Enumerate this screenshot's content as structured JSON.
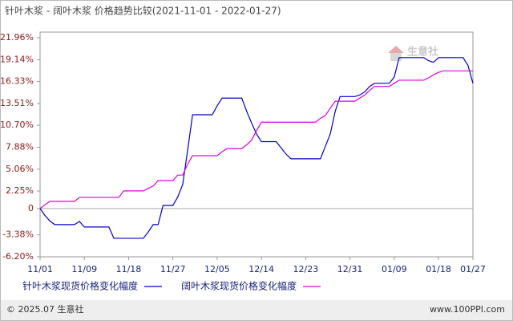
{
  "chart_data": {
    "type": "line",
    "title": "针叶木浆 - 阔叶木浆 价格趋势比较(2021-11-01 - 2022-01-27)",
    "watermark": "生意社",
    "footer_left": "© 2025.07 生意社",
    "footer_right": "www.100PPI.com",
    "categories": [
      "11/01",
      null,
      null,
      null,
      null,
      null,
      null,
      null,
      null,
      "11/09",
      null,
      null,
      null,
      null,
      null,
      null,
      null,
      null,
      "11/18",
      null,
      null,
      null,
      null,
      null,
      null,
      null,
      null,
      "11/27",
      null,
      null,
      null,
      null,
      null,
      null,
      null,
      null,
      "12/05",
      null,
      null,
      null,
      null,
      null,
      null,
      null,
      null,
      "12/14",
      null,
      null,
      null,
      null,
      null,
      null,
      null,
      null,
      "12/23",
      null,
      null,
      null,
      null,
      null,
      null,
      null,
      null,
      "12/31",
      null,
      null,
      null,
      null,
      null,
      null,
      null,
      null,
      "01/09",
      null,
      null,
      null,
      null,
      null,
      null,
      null,
      null,
      "01/18",
      null,
      null,
      null,
      null,
      null,
      null,
      "01/27"
    ],
    "series": [
      {
        "name": "针叶木浆现货价格变化幅度",
        "color": "#0000cc",
        "values": [
          0,
          -0.9,
          -1.6,
          -2.06,
          -2.06,
          -2.06,
          -2.06,
          -2.06,
          -1.65,
          -2.37,
          -2.37,
          -2.37,
          -2.37,
          -2.37,
          -2.37,
          -3.82,
          -3.82,
          -3.82,
          -3.82,
          -3.82,
          -3.82,
          -3.82,
          -3.0,
          -2.06,
          -2.06,
          0.4,
          0.4,
          0.4,
          1.5,
          3.1,
          7.5,
          12.06,
          12.06,
          12.06,
          12.06,
          12.06,
          13.2,
          14.2,
          14.2,
          14.2,
          14.2,
          14.2,
          12.5,
          11.0,
          9.6,
          8.6,
          8.6,
          8.6,
          8.6,
          7.8,
          7.0,
          6.4,
          6.4,
          6.4,
          6.4,
          6.4,
          6.4,
          6.4,
          8.0,
          9.6,
          12.5,
          14.4,
          14.4,
          14.4,
          14.4,
          14.6,
          15.0,
          15.7,
          16.1,
          16.1,
          16.1,
          16.1,
          16.9,
          19.4,
          19.4,
          19.4,
          19.4,
          19.4,
          19.4,
          19.0,
          18.8,
          19.4,
          19.4,
          19.4,
          19.4,
          19.4,
          19.4,
          18.4,
          16.1
        ]
      },
      {
        "name": "阔叶木浆现货价格变化幅度",
        "color": "#dd00dd",
        "values": [
          0,
          0.5,
          0.93,
          0.93,
          0.93,
          0.93,
          0.93,
          0.93,
          1.44,
          1.44,
          1.44,
          1.44,
          1.44,
          1.44,
          1.44,
          1.44,
          1.44,
          2.27,
          2.27,
          2.27,
          2.27,
          2.27,
          2.6,
          2.9,
          3.6,
          3.6,
          3.6,
          3.6,
          4.3,
          4.3,
          5.7,
          6.8,
          6.8,
          6.8,
          6.8,
          6.8,
          6.8,
          7.3,
          7.7,
          7.7,
          7.7,
          7.7,
          8.2,
          8.8,
          10.0,
          11.1,
          11.1,
          11.1,
          11.1,
          11.1,
          11.1,
          11.1,
          11.1,
          11.1,
          11.1,
          11.1,
          11.1,
          11.6,
          11.96,
          12.9,
          13.8,
          13.8,
          13.8,
          13.8,
          13.8,
          14.2,
          14.6,
          15.2,
          15.7,
          15.7,
          15.7,
          15.7,
          16.1,
          16.5,
          16.5,
          16.5,
          16.5,
          16.5,
          16.5,
          16.8,
          17.2,
          17.5,
          17.7,
          17.7,
          17.7,
          17.7,
          17.7,
          17.7,
          17.7
        ]
      }
    ],
    "ylim": [
      -6.2,
      21.96
    ],
    "yticks": [
      {
        "value": 21.96,
        "label": "21.96%"
      },
      {
        "value": 19.14,
        "label": "19.14%"
      },
      {
        "value": 16.33,
        "label": "16.33%"
      },
      {
        "value": 13.51,
        "label": "13.51%"
      },
      {
        "value": 10.7,
        "label": "10.70%"
      },
      {
        "value": 7.88,
        "label": "7.88%"
      },
      {
        "value": 5.06,
        "label": "5.06%"
      },
      {
        "value": 2.25,
        "label": "2.25%"
      },
      0,
      {
        "value": -3.38,
        "label": "-3.38%"
      },
      {
        "value": -6.2,
        "label": "-6.20%"
      }
    ]
  }
}
